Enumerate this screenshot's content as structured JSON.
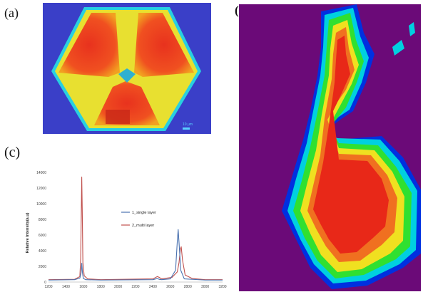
{
  "labels": {
    "a": "(a)",
    "b": "(b)",
    "c": "(c)"
  },
  "scale_bar": "10 μm",
  "colors": {
    "map_background_a": "#3a3fc8",
    "map_background_b": "#6b0a78",
    "single": "#4a72b0",
    "multi": "#c0504d"
  },
  "chart_data": {
    "type": "line",
    "xlim": [
      1200,
      3200
    ],
    "ylim": [
      0,
      14000
    ],
    "x_ticks": [
      1200,
      1400,
      1600,
      1800,
      2000,
      2200,
      2400,
      2600,
      2800,
      3000,
      3200
    ],
    "y_ticks": [
      0,
      2000,
      4000,
      6000,
      8000,
      10000,
      12000,
      14000
    ],
    "ylabel": "Relative Intensity(a.u)",
    "legend_position": "center-right",
    "series": [
      {
        "name": "1_single layer",
        "color": "#4a72b0",
        "x": [
          1200,
          1500,
          1560,
          1575,
          1583,
          1590,
          1600,
          1630,
          1800,
          2400,
          2450,
          2470,
          2500,
          2600,
          2660,
          2680,
          2690,
          2700,
          2720,
          2760,
          3000,
          3200
        ],
        "y": [
          250,
          300,
          500,
          1200,
          2400,
          1200,
          450,
          300,
          250,
          300,
          450,
          350,
          300,
          400,
          1500,
          5200,
          6700,
          5000,
          1500,
          400,
          250,
          250
        ]
      },
      {
        "name": "2_multi layer",
        "color": "#c0504d",
        "x": [
          1200,
          1500,
          1560,
          1570,
          1577,
          1582,
          1588,
          1595,
          1610,
          1650,
          1800,
          2400,
          2450,
          2470,
          2500,
          2620,
          2680,
          2700,
          2715,
          2725,
          2740,
          2770,
          2850,
          3000,
          3200
        ],
        "y": [
          300,
          350,
          700,
          3000,
          9000,
          13400,
          9000,
          2500,
          800,
          400,
          300,
          400,
          700,
          600,
          400,
          600,
          1300,
          2500,
          4200,
          4500,
          2800,
          900,
          450,
          300,
          300
        ]
      }
    ]
  }
}
